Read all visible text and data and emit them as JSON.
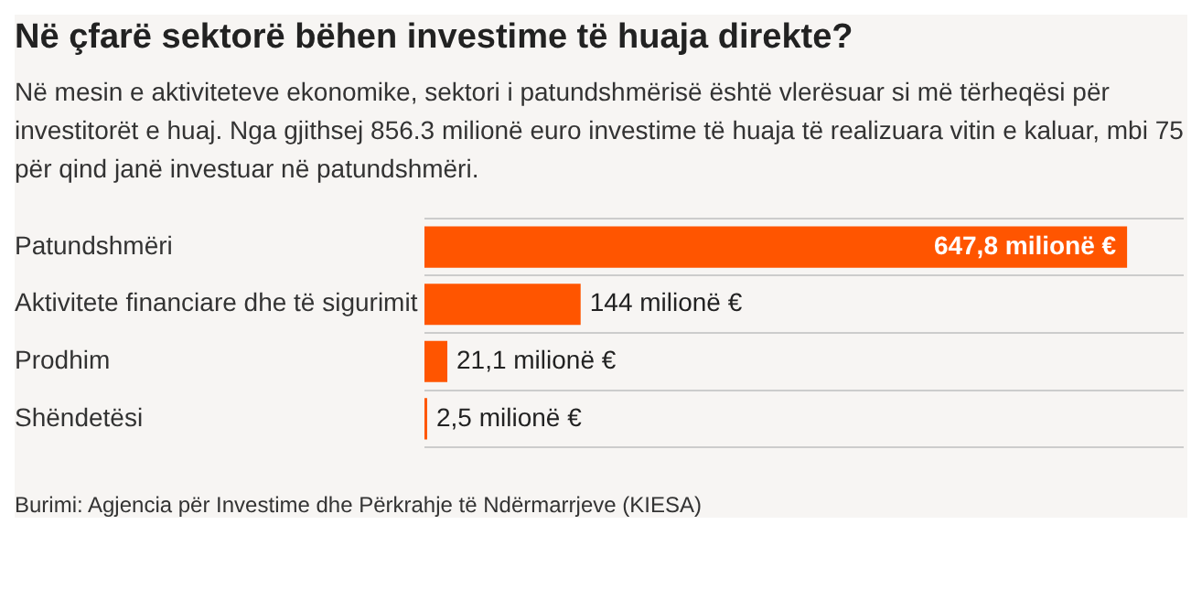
{
  "chart_data": {
    "type": "bar",
    "orientation": "horizontal",
    "title": "Në çfarë sektorë bëhen investime të huaja direkte?",
    "subtitle": "Në mesin e aktiviteteve ekonomike, sektori i patundshmërisë është vlerësuar si më tërheqësi për investitorët e huaj. Nga gjithsej 856.3 milionë euro investime të huaja të realizuara vitin e kaluar, mbi 75 për qind janë investuar në patundshmëri.",
    "categories": [
      "Patundshmëri",
      "Aktivitete financiare dhe të sigurimit",
      "Prodhim",
      "Shëndetësi"
    ],
    "values": [
      647.8,
      144,
      21.1,
      2.5
    ],
    "value_labels": [
      "647,8 milionë €",
      "144 milionë €",
      "21,1 milionë €",
      "2,5 milionë €"
    ],
    "color": "#ff5500",
    "grid": "y",
    "annotations": [
      "Burimi: Agjencia për Investime dhe Përkrahje të Ndërmarrjeve (KIESA)"
    ]
  }
}
